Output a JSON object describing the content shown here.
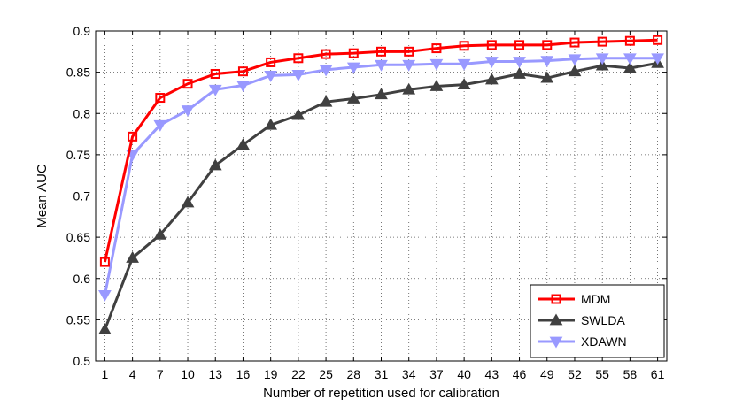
{
  "chart_data": {
    "type": "line",
    "title": "",
    "xlabel": "Number of repetition used for calibration",
    "ylabel": "Mean AUC",
    "x": [
      1,
      4,
      7,
      10,
      13,
      16,
      19,
      22,
      25,
      28,
      31,
      34,
      37,
      40,
      43,
      46,
      49,
      52,
      55,
      58,
      61
    ],
    "x_tick_labels": [
      "1",
      "4",
      "7",
      "10",
      "13",
      "16",
      "19",
      "22",
      "25",
      "28",
      "31",
      "34",
      "37",
      "40",
      "43",
      "46",
      "49",
      "52",
      "55",
      "58",
      "61"
    ],
    "xlim": [
      0,
      62
    ],
    "ylim": [
      0.5,
      0.9
    ],
    "y_ticks": [
      0.5,
      0.55,
      0.6,
      0.65,
      0.7,
      0.75,
      0.8,
      0.85,
      0.9
    ],
    "y_tick_labels": [
      "0.5",
      "0.55",
      "0.6",
      "0.65",
      "0.7",
      "0.75",
      "0.8",
      "0.85",
      "0.9"
    ],
    "grid": true,
    "legend_position": "bottom-right",
    "series": [
      {
        "name": "MDM",
        "color": "#ff0000",
        "marker": "square",
        "values": [
          0.62,
          0.772,
          0.819,
          0.836,
          0.848,
          0.851,
          0.862,
          0.867,
          0.872,
          0.873,
          0.875,
          0.875,
          0.879,
          0.882,
          0.883,
          0.883,
          0.883,
          0.886,
          0.887,
          0.888,
          0.889
        ]
      },
      {
        "name": "SWLDA",
        "color": "#404040",
        "marker": "triangle-up",
        "values": [
          0.538,
          0.625,
          0.653,
          0.692,
          0.737,
          0.762,
          0.786,
          0.798,
          0.814,
          0.818,
          0.823,
          0.829,
          0.833,
          0.835,
          0.841,
          0.848,
          0.843,
          0.851,
          0.858,
          0.855,
          0.861
        ]
      },
      {
        "name": "XDAWN",
        "color": "#9999ff",
        "marker": "triangle-down",
        "values": [
          0.58,
          0.75,
          0.786,
          0.804,
          0.829,
          0.834,
          0.846,
          0.847,
          0.853,
          0.856,
          0.859,
          0.859,
          0.86,
          0.86,
          0.863,
          0.863,
          0.864,
          0.866,
          0.867,
          0.867,
          0.867
        ]
      }
    ]
  }
}
